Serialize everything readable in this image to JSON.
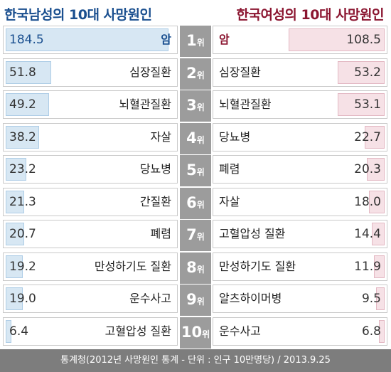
{
  "chart_data": {
    "type": "bar",
    "subtitle_left": "한국남성의 10대 사망원인",
    "subtitle_right": "한국여성의 10대 사망원인",
    "rank_suffix": "위",
    "xlim": [
      0,
      190
    ],
    "male": [
      {
        "rank": "1",
        "cause": "암",
        "value": 184.5
      },
      {
        "rank": "2",
        "cause": "심장질환",
        "value": 51.8
      },
      {
        "rank": "3",
        "cause": "뇌혈관질환",
        "value": 49.2
      },
      {
        "rank": "4",
        "cause": "자살",
        "value": 38.2
      },
      {
        "rank": "5",
        "cause": "당뇨병",
        "value": 23.2
      },
      {
        "rank": "6",
        "cause": "간질환",
        "value": 21.3
      },
      {
        "rank": "7",
        "cause": "폐렴",
        "value": 20.7
      },
      {
        "rank": "8",
        "cause": "만성하기도 질환",
        "value": 19.2
      },
      {
        "rank": "9",
        "cause": "운수사고",
        "value": 19.0
      },
      {
        "rank": "10",
        "cause": "고혈압성 질환",
        "value": 6.4
      }
    ],
    "female": [
      {
        "rank": "1",
        "cause": "암",
        "value": 108.5
      },
      {
        "rank": "2",
        "cause": "심장질환",
        "value": 53.2
      },
      {
        "rank": "3",
        "cause": "뇌혈관질환",
        "value": 53.1
      },
      {
        "rank": "4",
        "cause": "당뇨병",
        "value": 22.7
      },
      {
        "rank": "5",
        "cause": "폐렴",
        "value": 20.3
      },
      {
        "rank": "6",
        "cause": "자살",
        "value": 18.0
      },
      {
        "rank": "7",
        "cause": "고혈압성 질환",
        "value": 14.4
      },
      {
        "rank": "8",
        "cause": "만성하기도 질환",
        "value": 11.9
      },
      {
        "rank": "9",
        "cause": "알츠하이머병",
        "value": 9.5
      },
      {
        "rank": "10",
        "cause": "운수사고",
        "value": 6.8
      }
    ],
    "source": "통계청(2012년 사망원인 통계 - 단위 : 인구 10만명당) / 2013.9.25",
    "colors": {
      "male_title": "#1a4f8f",
      "female_title": "#8b1530",
      "male_bar": "#d7e7f3",
      "female_bar": "#f6e1e6",
      "rank_bg": "#9c9c9c",
      "footer_bg": "#7d7d7d"
    }
  }
}
